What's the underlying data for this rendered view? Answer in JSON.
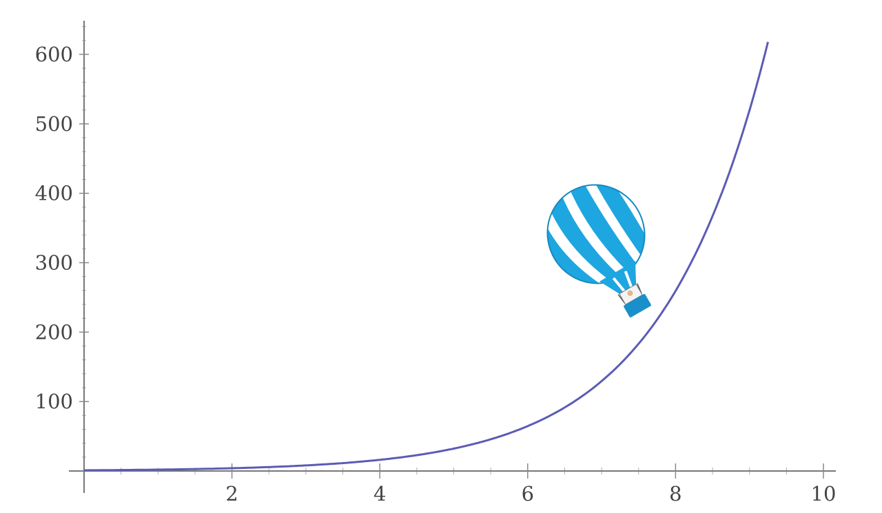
{
  "chart_data": {
    "type": "line",
    "title": "",
    "xlabel": "",
    "ylabel": "",
    "xlim": [
      0,
      10
    ],
    "ylim": [
      0,
      650
    ],
    "x_ticks": [
      2,
      4,
      6,
      8,
      10
    ],
    "y_ticks": [
      100,
      200,
      300,
      400,
      500,
      600
    ],
    "x_tick_labels": [
      "2",
      "4",
      "6",
      "8",
      "10"
    ],
    "y_tick_labels": [
      "100",
      "200",
      "300",
      "400",
      "500",
      "600"
    ],
    "grid": false,
    "series": [
      {
        "color": "#5b5bb5",
        "x": [
          0,
          1,
          2,
          3,
          4,
          5,
          6,
          7,
          8,
          9,
          9.25
        ],
        "y": [
          1,
          2,
          4,
          9,
          18,
          33,
          63,
          124,
          242,
          510,
          618
        ]
      }
    ]
  },
  "balloon": {
    "icon": "hot-air-balloon-icon",
    "envelope_color": "#1ea6e0",
    "stripe_color": "#ffffff",
    "basket_color": "#1a8fc9"
  }
}
